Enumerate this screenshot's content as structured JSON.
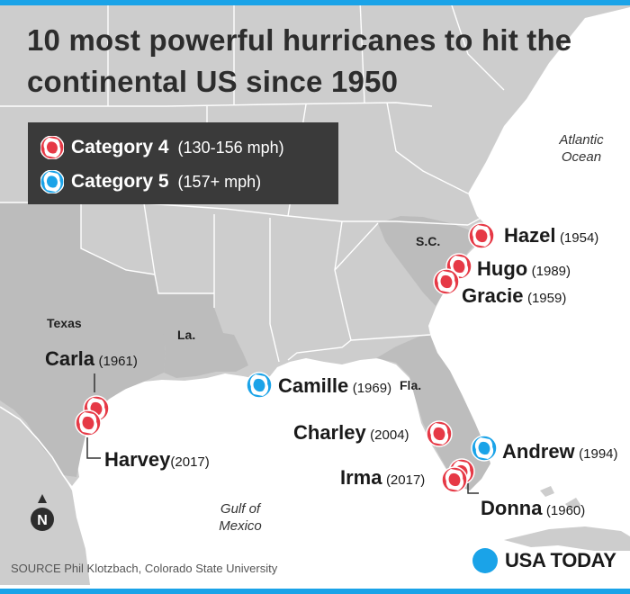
{
  "title": "10 most powerful hurricanes to hit the continental US since 1950",
  "legend": {
    "items": [
      {
        "name": "Category 4",
        "range": "(130-156 mph)",
        "color": "#e63946",
        "icon": "hurricane-icon"
      },
      {
        "name": "Category 5",
        "range": "(157+ mph)",
        "color": "#1aa3e8",
        "icon": "hurricane-icon"
      }
    ]
  },
  "regions": {
    "texas": "Texas",
    "louisiana": "La.",
    "florida": "Fla.",
    "south_carolina": "S.C."
  },
  "water": {
    "atlantic": "Atlantic Ocean",
    "gulf": "Gulf of Mexico"
  },
  "hurricanes": [
    {
      "name": "Hazel",
      "year": "(1954)",
      "category": 4
    },
    {
      "name": "Hugo",
      "year": "(1989)",
      "category": 4
    },
    {
      "name": "Gracie",
      "year": "(1959)",
      "category": 4
    },
    {
      "name": "Carla",
      "year": "(1961)",
      "category": 4
    },
    {
      "name": "Harvey",
      "year": "(2017)",
      "category": 4
    },
    {
      "name": "Camille",
      "year": "(1969)",
      "category": 5
    },
    {
      "name": "Charley",
      "year": "(2004)",
      "category": 4
    },
    {
      "name": "Andrew",
      "year": "(1994)",
      "category": 5
    },
    {
      "name": "Irma",
      "year": "(2017)",
      "category": 4
    },
    {
      "name": "Donna",
      "year": "(1960)",
      "category": 4
    }
  ],
  "compass": "N",
  "source": "SOURCE Phil Klotzbach, Colorado State University",
  "brand": {
    "name": "USA TODAY",
    "color": "#1aa3e8"
  },
  "colors": {
    "cat4": "#e63946",
    "cat5": "#1aa3e8",
    "land": "#c9c9c9",
    "land_dark": "#b9b9b9",
    "water": "#ffffff"
  }
}
